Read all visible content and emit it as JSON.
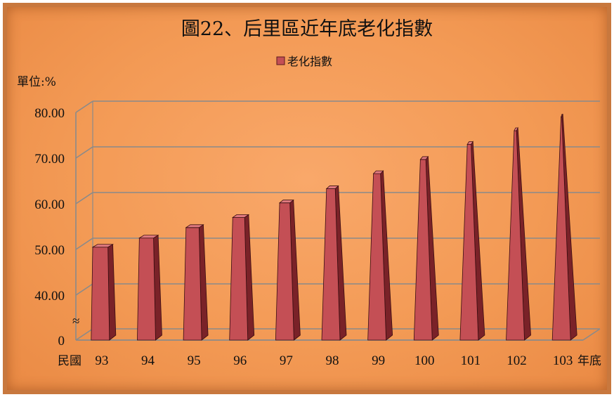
{
  "chart_data": {
    "type": "bar",
    "title": "圖22、后里區近年底老化指數",
    "unit_label": "單位:%",
    "x_prefix": "民國",
    "x_suffix": "年底",
    "categories": [
      "93",
      "94",
      "95",
      "96",
      "97",
      "98",
      "99",
      "100",
      "101",
      "102",
      "103"
    ],
    "series": [
      {
        "name": "老化指數",
        "values": [
          50.5,
          52.5,
          54.8,
          57.0,
          60.2,
          63.3,
          66.6,
          69.7,
          73.0,
          76.0,
          79.0
        ]
      }
    ],
    "y_ticks": [
      "0",
      "40.00",
      "50.00",
      "60.00",
      "70.00",
      "80.00"
    ],
    "ylim": [
      40,
      80
    ],
    "axis_break": "≈",
    "grid": true,
    "legend_position": "top-center",
    "colors": {
      "bar_front": "#c44f55",
      "bar_side": "#7a2228",
      "bar_top": "#e07a80",
      "grid": "#8a8a8a",
      "background": "#f39a55"
    }
  }
}
